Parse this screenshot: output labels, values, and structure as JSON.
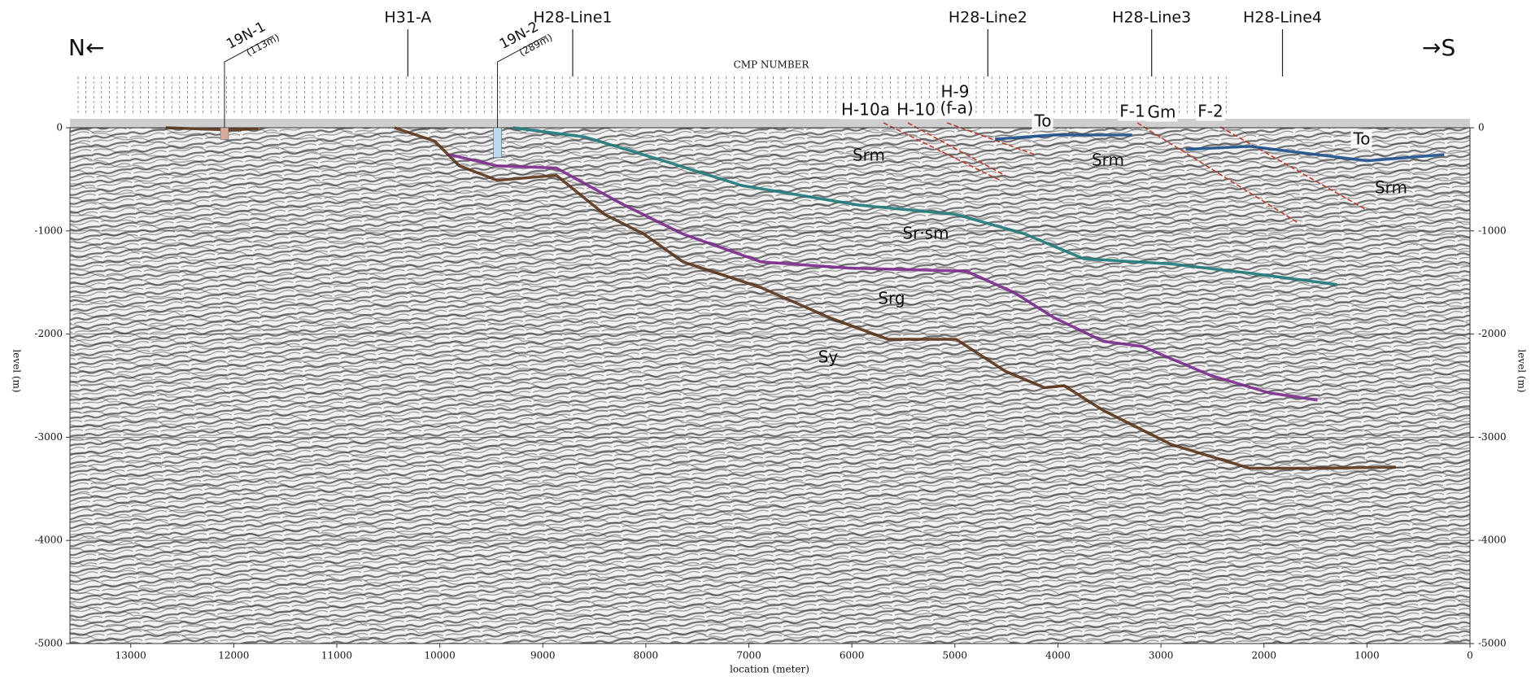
{
  "chart_data": {
    "type": "line",
    "title": "CMP NUMBER",
    "xlabel": "location (meter)",
    "ylabel": "level (m)",
    "xlim": [
      13590,
      0
    ],
    "ylim": [
      -5000,
      0
    ],
    "xticks": [
      13000,
      12000,
      11000,
      10000,
      9000,
      8000,
      7000,
      6000,
      5000,
      4000,
      3000,
      2000,
      1000,
      0
    ],
    "yticks": [
      0,
      -1000,
      -2000,
      -3000,
      -4000,
      -5000
    ],
    "grid": true,
    "series": [
      {
        "color": "#5a3418",
        "x": [
          12660,
          12380,
          12090,
          11760
        ],
        "values": [
          0,
          -10,
          -20,
          -10
        ]
      },
      {
        "color": "#5a3418",
        "x": [
          10440,
          10050,
          9810,
          9440,
          8870,
          8400,
          8020,
          7640,
          6880,
          6220,
          5650,
          4990,
          4510,
          4130,
          3940,
          3560,
          2900,
          2140,
          1480,
          720
        ],
        "values": [
          0,
          -130,
          -370,
          -510,
          -460,
          -840,
          -1030,
          -1300,
          -1550,
          -1840,
          -2050,
          -2050,
          -2360,
          -2520,
          -2500,
          -2740,
          -3070,
          -3300,
          -3300,
          -3290
        ]
      },
      {
        "color": "#7b2a8c",
        "x": [
          9910,
          9440,
          8870,
          8210,
          7640,
          6880,
          6030,
          4890,
          4420,
          4040,
          3560,
          3180,
          2520,
          1950,
          1480
        ],
        "values": [
          -260,
          -370,
          -390,
          -750,
          -1030,
          -1300,
          -1360,
          -1390,
          -1600,
          -1840,
          -2070,
          -2120,
          -2400,
          -2570,
          -2640
        ]
      },
      {
        "color": "#1f7a7a",
        "x": [
          9290,
          8590,
          7830,
          7070,
          5930,
          4990,
          4320,
          3750,
          2900,
          2140,
          1290
        ],
        "values": [
          0,
          -90,
          -320,
          -560,
          -750,
          -840,
          -1030,
          -1270,
          -1320,
          -1410,
          -1520
        ]
      },
      {
        "color": "#1b4f8c",
        "x": [
          4610,
          4040,
          3280
        ],
        "values": [
          -110,
          -70,
          -70
        ]
      },
      {
        "color": "#1b4f8c",
        "x": [
          2760,
          2140,
          1000,
          250
        ],
        "values": [
          -210,
          -180,
          -320,
          -260
        ]
      }
    ],
    "wells": [
      {
        "name": "19N-1",
        "x": 12090,
        "depth": 113,
        "depth_label": "(113m)",
        "color": "#d9a99a"
      },
      {
        "name": "19N-2",
        "x": 9440,
        "depth": 289,
        "depth_label": "(289m)",
        "color": "#b9dcef"
      }
    ],
    "survey_lines": [
      {
        "label": "H31-A",
        "x": 10310
      },
      {
        "label": "H28-Line1",
        "x": 8710
      },
      {
        "label": "H28-Line2",
        "x": 4680
      },
      {
        "label": "H28-Line3",
        "x": 3090
      },
      {
        "label": "H28-Line4",
        "x": 1820
      }
    ],
    "direction_left": "N←",
    "direction_right": "→S",
    "annotations": [
      "H-10a",
      "H-10",
      "H-9",
      "(f-a)",
      "To",
      "F-1",
      "Gm",
      "F-2",
      "To",
      "Srm",
      "Srm",
      "Srm",
      "Sr·sm",
      "Srg",
      "Sy"
    ]
  }
}
